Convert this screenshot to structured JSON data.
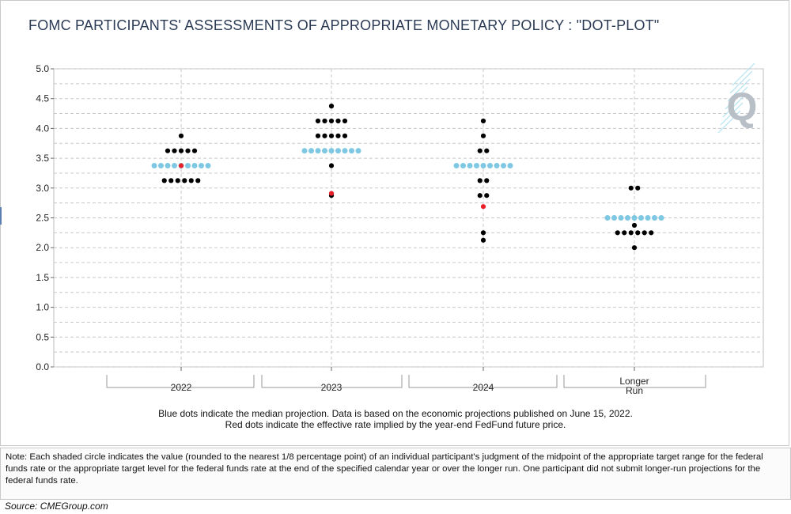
{
  "title": "FOMC PARTICIPANTS' ASSESSMENTS OF APPROPRIATE MONETARY POLICY : \"DOT-PLOT\"",
  "captions": [
    "Blue dots indicate the median projection. Data is based on the economic projections published on June 15, 2022.",
    "Red dots indicate the effective rate implied by the year-end FedFund future price."
  ],
  "note": "Note: Each shaded circle indicates the value (rounded to the nearest 1/8 percentage point) of an individual participant's judgment of the midpoint of the appropriate target range for the federal funds rate or the appropriate target level for the federal funds rate at the end of the specified calendar year or over the longer run. One participant did not submit longer-run projections for the federal funds rate.",
  "source": "Source:  CMEGroup.com",
  "logo_text": "Q",
  "colors": {
    "participant": "#000000",
    "median": "#7ec8e3",
    "futures": "#e8202a",
    "grid": "#c8c8c8",
    "title": "#2b3a55",
    "logo": "#b8bfc6"
  },
  "chart_data": {
    "type": "scatter",
    "categories": [
      "2022",
      "2023",
      "2024",
      "Longer\nRun"
    ],
    "ylim": [
      0,
      5
    ],
    "yticks": [
      "0.0",
      "0.5",
      "1.0",
      "1.5",
      "2.0",
      "2.5",
      "3.0",
      "3.5",
      "4.0",
      "4.5",
      "5.0"
    ],
    "grid": true,
    "series": [
      {
        "role": "participants",
        "values": [
          [
            {
              "y": 3.875,
              "count": 1
            },
            {
              "y": 3.625,
              "count": 5
            },
            {
              "y": 3.375,
              "count": 6
            },
            {
              "y": 3.125,
              "count": 6
            }
          ],
          [
            {
              "y": 4.375,
              "count": 1
            },
            {
              "y": 4.125,
              "count": 5
            },
            {
              "y": 3.875,
              "count": 5
            },
            {
              "y": 3.625,
              "count": 2
            },
            {
              "y": 3.375,
              "count": 1
            },
            {
              "y": 2.875,
              "count": 1
            }
          ],
          [
            {
              "y": 4.125,
              "count": 1
            },
            {
              "y": 3.875,
              "count": 1
            },
            {
              "y": 3.625,
              "count": 2
            },
            {
              "y": 3.375,
              "count": 4
            },
            {
              "y": 3.125,
              "count": 2
            },
            {
              "y": 2.875,
              "count": 2
            },
            {
              "y": 2.25,
              "count": 1
            },
            {
              "y": 2.125,
              "count": 1
            }
          ],
          [
            {
              "y": 3.0,
              "count": 2
            },
            {
              "y": 2.5,
              "count": 3
            },
            {
              "y": 2.375,
              "count": 1
            },
            {
              "y": 2.25,
              "count": 6
            },
            {
              "y": 2.0,
              "count": 1
            }
          ]
        ]
      },
      {
        "role": "median",
        "values": [
          3.375,
          3.625,
          3.375,
          2.5
        ],
        "dot_counts": [
          9,
          9,
          9,
          9
        ]
      },
      {
        "role": "futures",
        "values": [
          3.375,
          2.91,
          2.69,
          null
        ]
      }
    ]
  }
}
